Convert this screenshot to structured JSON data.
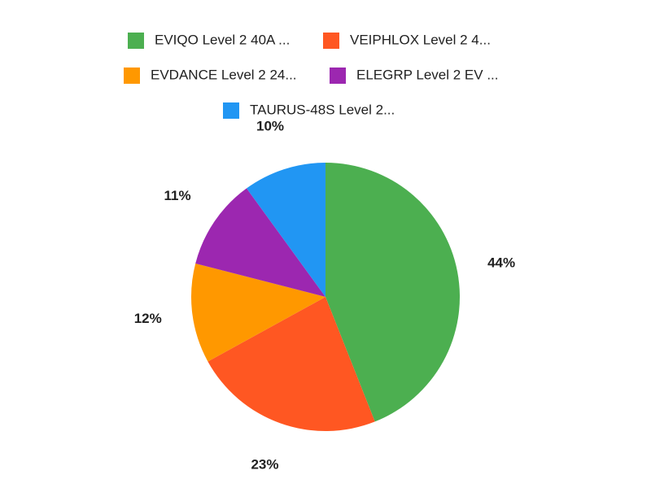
{
  "chart_data": {
    "type": "pie",
    "categories": [
      "EVIQO Level 2 40A ...",
      "VEIPHLOX Level 2 4...",
      "EVDANCE Level 2 24...",
      "ELEGRP Level 2 EV ...",
      "TAURUS-48S Level 2..."
    ],
    "values": [
      44,
      23,
      12,
      11,
      10
    ],
    "value_labels": [
      "44%",
      "23%",
      "12%",
      "11%",
      "10%"
    ],
    "colors": [
      "#4caf50",
      "#ff5722",
      "#ff9800",
      "#9c27b0",
      "#2196f3"
    ],
    "legend": "top"
  }
}
